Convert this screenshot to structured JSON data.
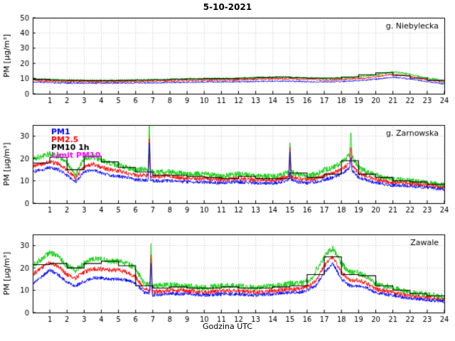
{
  "chart_data": {
    "type": "line",
    "title": "5-10-2021",
    "xlabel": "Godzina UTC",
    "ylabel": "PM [µg/m³]",
    "x_range": [
      0,
      24
    ],
    "xticks": [
      1,
      2,
      3,
      4,
      5,
      6,
      7,
      8,
      9,
      10,
      11,
      12,
      13,
      14,
      15,
      16,
      17,
      18,
      19,
      20,
      21,
      22,
      23,
      24
    ],
    "anchor_dx": 0.5,
    "colors": {
      "pm1": "#0000ff",
      "pm25": "#ff0000",
      "pm10": "#00cc00",
      "pm10_1h": "#000000",
      "limit": "#ff00ff",
      "grid": "#999999",
      "axis": "#000000"
    },
    "legend": [
      {
        "label": "PM1",
        "color": "#0000ff"
      },
      {
        "label": "PM2.5",
        "color": "#ff0000"
      },
      {
        "label": "PM10 1h",
        "color": "#000000"
      },
      {
        "label": "Limit PM10",
        "color": "#ff00ff"
      }
    ],
    "limit": {
      "name": "Limit PM10",
      "value": 50,
      "color": "#ff00ff"
    },
    "subplots": [
      {
        "station": "g. Niebylecka",
        "ylim": [
          0,
          50
        ],
        "yticks": [
          0,
          10,
          20,
          30,
          40,
          50
        ],
        "series": [
          {
            "name": "PM10",
            "color": "#00cc00",
            "noise": 0.7,
            "spikes": [],
            "values": [
              10,
              9.6,
              9.2,
              9.0,
              8.8,
              8.8,
              8.7,
              8.7,
              8.6,
              8.6,
              8.7,
              8.8,
              9.0,
              9.0,
              9.2,
              9.3,
              9.5,
              9.6,
              9.8,
              9.8,
              10.0,
              10.0,
              10.0,
              10.0,
              10.2,
              10.4,
              10.6,
              10.8,
              11.0,
              11.0,
              10.8,
              10.6,
              10.4,
              10.2,
              10.0,
              10.2,
              10.5,
              10.8,
              11.2,
              11.8,
              12.5,
              13.5,
              14.3,
              13.8,
              12.6,
              11.4,
              10.4,
              9.4,
              8.2
            ]
          },
          {
            "name": "PM2.5",
            "color": "#ff0000",
            "noise": 0.55,
            "spikes": [],
            "values": [
              9.0,
              8.7,
              8.3,
              8.1,
              8.0,
              8.0,
              7.9,
              7.9,
              7.8,
              7.8,
              7.9,
              8.0,
              8.1,
              8.1,
              8.3,
              8.4,
              8.5,
              8.6,
              8.8,
              8.8,
              9.0,
              9.0,
              9.0,
              9.0,
              9.2,
              9.3,
              9.5,
              9.7,
              9.8,
              9.8,
              9.7,
              9.5,
              9.3,
              9.2,
              9.0,
              9.2,
              9.4,
              9.7,
              10.0,
              10.5,
              11.2,
              12.0,
              12.8,
              12.3,
              11.3,
              10.2,
              9.3,
              8.5,
              7.4
            ]
          },
          {
            "name": "PM1",
            "color": "#0000ff",
            "noise": 0.45,
            "spikes": [],
            "values": [
              7.8,
              7.6,
              7.3,
              7.1,
              7.0,
              7.0,
              7.0,
              7.0,
              6.9,
              6.9,
              7.0,
              7.0,
              7.1,
              7.1,
              7.2,
              7.3,
              7.4,
              7.5,
              7.6,
              7.6,
              7.8,
              7.8,
              7.8,
              7.8,
              7.9,
              8.0,
              8.1,
              8.2,
              8.3,
              8.3,
              8.2,
              8.1,
              8.0,
              7.9,
              7.8,
              7.9,
              8.1,
              8.3,
              8.6,
              9.0,
              9.6,
              10.3,
              10.9,
              10.5,
              9.7,
              8.8,
              8.0,
              7.3,
              6.4
            ]
          }
        ],
        "step_series": {
          "name": "PM10 1h",
          "color": "#000000",
          "values": [
            9.5,
            9.0,
            8.8,
            8.7,
            8.7,
            8.8,
            9.0,
            9.2,
            9.6,
            9.8,
            10.0,
            10.0,
            10.3,
            10.7,
            11.0,
            10.5,
            10.2,
            10.3,
            11.0,
            12.5,
            13.8,
            12.0,
            10.3,
            8.8
          ]
        }
      },
      {
        "station": "g. Zarnowska",
        "ylim": [
          0,
          35
        ],
        "yticks": [
          0,
          10,
          20,
          30
        ],
        "show_legend": true,
        "series": [
          {
            "name": "PM10",
            "color": "#00cc00",
            "noise": 1.3,
            "spikes": [
              [
                6.8,
                35
              ],
              [
                15.0,
                27
              ],
              [
                18.55,
                33
              ]
            ],
            "values": [
              20,
              21,
              22,
              21,
              18,
              13,
              20,
              21,
              19,
              18,
              17,
              16,
              15,
              15,
              14,
              14,
              14,
              13.5,
              13,
              13,
              13,
              12.5,
              12,
              12.5,
              13,
              12.5,
              12,
              12,
              12,
              12.5,
              14,
              13,
              12,
              13,
              15,
              16,
              18,
              22,
              16,
              14,
              12.5,
              11.5,
              10.5,
              10.5,
              10,
              9.5,
              9,
              8.5,
              8
            ]
          },
          {
            "name": "PM2.5",
            "color": "#ff0000",
            "noise": 1.0,
            "spikes": [
              [
                6.8,
                29
              ],
              [
                15.0,
                25
              ],
              [
                18.55,
                26
              ]
            ],
            "values": [
              16.5,
              17.5,
              18.5,
              17.5,
              15,
              11,
              16.5,
              17.5,
              16,
              15,
              14.5,
              13.5,
              12.5,
              12.5,
              12,
              12,
              12,
              11.5,
              11,
              11,
              11,
              10.8,
              10.5,
              10.8,
              11,
              10.8,
              10.5,
              10.5,
              10.5,
              11,
              12,
              11,
              10.5,
              11,
              12.5,
              13.5,
              15,
              18,
              13.5,
              12,
              10.8,
              10,
              9.2,
              9.2,
              8.8,
              8.5,
              8,
              7.5,
              7
            ]
          },
          {
            "name": "PM1",
            "color": "#0000ff",
            "noise": 0.8,
            "spikes": [
              [
                6.8,
                27
              ],
              [
                15.0,
                23
              ],
              [
                18.55,
                21
              ]
            ],
            "values": [
              14,
              15,
              16,
              15,
              12.5,
              9.5,
              14,
              15,
              13.5,
              12.5,
              12,
              11.5,
              10.5,
              10.5,
              10,
              10,
              10,
              9.8,
              9.5,
              9.5,
              9.5,
              9.2,
              9,
              9.2,
              9.5,
              9.2,
              9,
              9,
              9,
              9.5,
              10.5,
              9.5,
              9,
              9.5,
              10.5,
              11.5,
              13,
              16,
              11.5,
              10.2,
              9.2,
              8.6,
              8,
              8,
              7.6,
              7.4,
              7,
              6.6,
              6.2
            ]
          }
        ],
        "step_series": {
          "name": "PM10 1h",
          "color": "#000000",
          "values": [
            18,
            20.5,
            15,
            21,
            18.5,
            16,
            14,
            12.5,
            12.5,
            12,
            11.5,
            11,
            12,
            11,
            11,
            13.5,
            11.5,
            13,
            19,
            13,
            11.5,
            10,
            9.5,
            8.5
          ]
        }
      },
      {
        "station": "Zawale",
        "ylim": [
          0,
          35
        ],
        "yticks": [
          0,
          10,
          20,
          30
        ],
        "series": [
          {
            "name": "PM10",
            "color": "#00cc00",
            "noise": 1.3,
            "spikes": [
              [
                6.9,
                31
              ],
              [
                16.55,
                21
              ]
            ],
            "values": [
              21,
              24,
              27,
              25,
              21,
              19,
              22,
              24,
              24,
              23,
              23,
              22,
              20,
              13,
              12,
              12,
              12.5,
              12,
              12,
              11.5,
              11,
              11.5,
              12,
              12,
              12,
              11.5,
              11,
              11.5,
              12,
              12.5,
              13,
              13,
              14,
              17,
              25,
              29,
              22,
              18,
              18,
              16,
              13,
              12,
              11,
              10,
              9,
              8.5,
              8,
              7.5,
              7
            ]
          },
          {
            "name": "PM2.5",
            "color": "#ff0000",
            "noise": 1.0,
            "spikes": [
              [
                6.9,
                26
              ]
            ],
            "values": [
              17,
              20,
              22.5,
              20.5,
              17,
              15.5,
              18,
              19.5,
              19.5,
              19,
              19,
              18,
              16,
              10.5,
              9.5,
              9.5,
              10,
              9.8,
              9.8,
              9.4,
              9,
              9.4,
              9.8,
              9.8,
              9.8,
              9.4,
              9,
              9.4,
              9.8,
              10.2,
              10.5,
              10.5,
              11.5,
              14,
              21,
              25,
              18,
              14.5,
              14.5,
              13,
              10.5,
              9.8,
              9,
              8.2,
              7.4,
              7,
              6.6,
              6.2,
              5.8
            ]
          },
          {
            "name": "PM1",
            "color": "#0000ff",
            "noise": 0.8,
            "spikes": [
              [
                6.9,
                22
              ]
            ],
            "values": [
              13,
              16,
              19,
              17,
              13.5,
              12,
              14,
              15.5,
              15.5,
              15,
              15,
              14.5,
              13,
              9,
              8,
              8,
              8.5,
              8.3,
              8.3,
              8,
              7.7,
              8,
              8.3,
              8.3,
              8.3,
              8,
              7.7,
              8,
              8.3,
              8.7,
              9,
              9,
              10,
              12,
              18,
              22,
              15,
              12,
              12,
              11,
              9,
              8.3,
              7.7,
              7,
              6.3,
              6,
              5.6,
              5.3,
              5
            ]
          }
        ],
        "step_series": {
          "name": "PM10 1h",
          "color": "#000000",
          "values": [
            21.5,
            22,
            20,
            22,
            23,
            21,
            12,
            11,
            11.5,
            11,
            11,
            11.5,
            11,
            11,
            11.5,
            12,
            17,
            25,
            17,
            16.5,
            12,
            10,
            8.5,
            7.5
          ]
        }
      }
    ]
  }
}
